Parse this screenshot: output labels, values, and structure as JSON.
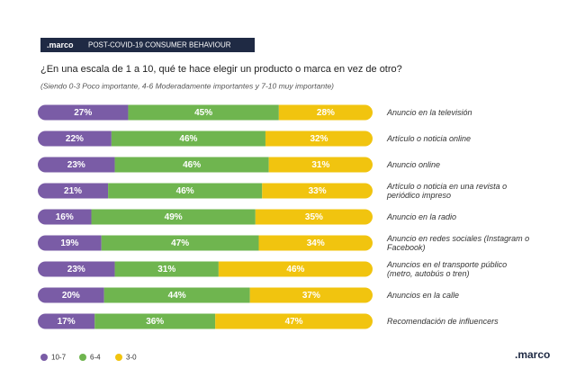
{
  "header": {
    "logo": ".marco",
    "tag": "POST-COVID-19 CONSUMER BEHAVIOUR"
  },
  "chart_data": {
    "type": "stacked_bar_horizontal",
    "title": "¿En una escala de 1 a 10, qué te hace elegir un producto o marca en vez de otro?",
    "subtitle": "(Siendo 0-3 Poco importante, 4-6 Moderadamente importantes y 7-10 muy importante)",
    "categories": [
      "Anuncio en la televisión",
      "Artículo o noticia online",
      "Anuncio online",
      "Artículo o noticia en una revista o periódico impreso",
      "Anuncio en la radio",
      "Anuncio en redes sociales (Instagram o Facebook)",
      "Anuncios en el transporte público (metro, autobús o tren)",
      "Anuncios en la calle",
      "Recomendación de influencers"
    ],
    "series": [
      {
        "name": "10-7",
        "color": "#7a5ca6",
        "values": [
          27,
          22,
          23,
          21,
          16,
          19,
          23,
          20,
          17
        ],
        "value_labels": [
          "27%",
          "22%",
          "23%",
          "21%",
          "16%",
          "19%",
          "23%",
          "20%",
          "17%"
        ]
      },
      {
        "name": "6-4",
        "color": "#6fb54f",
        "values": [
          45,
          46,
          46,
          46,
          49,
          47,
          31,
          44,
          36
        ],
        "value_labels": [
          "45%",
          "46%",
          "46%",
          "46%",
          "49%",
          "47%",
          "31%",
          "44%",
          "36%"
        ]
      },
      {
        "name": "3-0",
        "color": "#f1c40f",
        "values": [
          28,
          32,
          31,
          33,
          35,
          34,
          46,
          37,
          47
        ],
        "value_labels": [
          "28%",
          "32%",
          "31%",
          "33%",
          "35%",
          "34%",
          "46%",
          "37%",
          "47%"
        ]
      }
    ],
    "legend": "bottom-left"
  },
  "footer": {
    "logo": ".marco"
  }
}
